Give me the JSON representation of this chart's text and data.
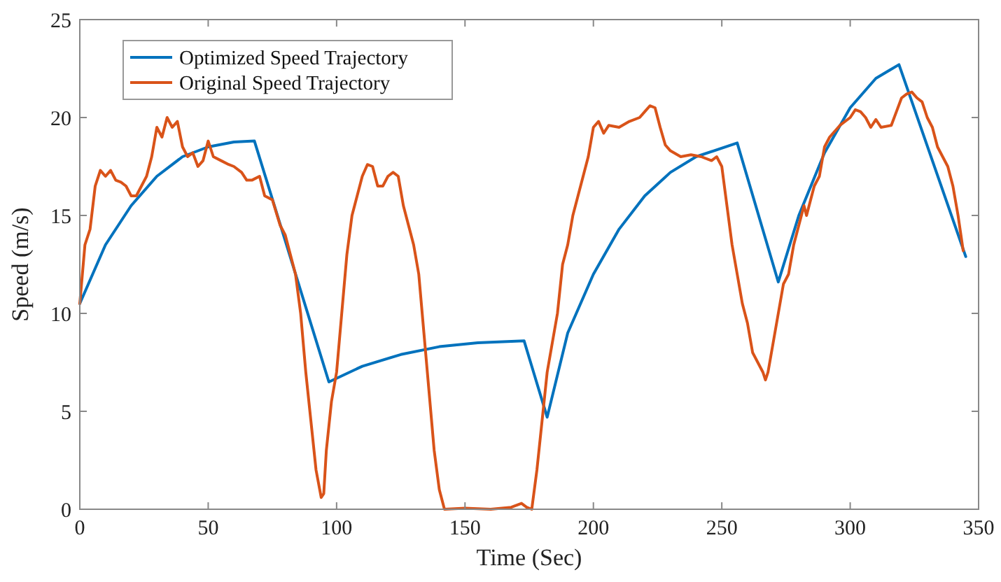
{
  "chart_data": {
    "type": "line",
    "xlabel": "Time (Sec)",
    "ylabel": "Speed (m/s)",
    "xlim": [
      0,
      350
    ],
    "ylim": [
      0,
      25
    ],
    "xticks": [
      0,
      50,
      100,
      150,
      200,
      250,
      300,
      350
    ],
    "yticks": [
      0,
      5,
      10,
      15,
      20,
      25
    ],
    "grid": false,
    "legend": "top left",
    "line_style": "solid",
    "marker": "none",
    "series": [
      {
        "name": "Optimized Speed Trajectory",
        "color": "#0072bd",
        "x": [
          0,
          10,
          20,
          30,
          40,
          50,
          60,
          68,
          97,
          110,
          125,
          140,
          155,
          173,
          182,
          190,
          200,
          210,
          220,
          230,
          240,
          256,
          272,
          280,
          290,
          300,
          310,
          319,
          345
        ],
        "values": [
          10.5,
          13.5,
          15.5,
          17,
          18,
          18.5,
          18.75,
          18.8,
          6.5,
          7.3,
          7.9,
          8.3,
          8.5,
          8.6,
          4.7,
          9,
          12,
          14.3,
          16,
          17.2,
          18,
          18.7,
          11.6,
          15,
          18.2,
          20.5,
          22,
          22.7,
          12.9
        ]
      },
      {
        "name": "Original Speed Trajectory",
        "color": "#d95319",
        "x": [
          0,
          2,
          4,
          6,
          8,
          10,
          12,
          14,
          16,
          18,
          20,
          22,
          24,
          26,
          28,
          30,
          32,
          34,
          36,
          38,
          40,
          42,
          44,
          46,
          48,
          50,
          52,
          55,
          58,
          60,
          63,
          65,
          67,
          70,
          72,
          75,
          78,
          80,
          82,
          84,
          86,
          88,
          90,
          92,
          94,
          95,
          96,
          98,
          100,
          102,
          104,
          106,
          108,
          110,
          112,
          114,
          116,
          118,
          120,
          122,
          124,
          126,
          128,
          130,
          132,
          134,
          136,
          138,
          140,
          142,
          150,
          160,
          168,
          172,
          174,
          176,
          178,
          180,
          182,
          184,
          186,
          188,
          190,
          192,
          194,
          196,
          198,
          200,
          202,
          204,
          206,
          210,
          214,
          218,
          220,
          222,
          224,
          226,
          228,
          230,
          234,
          238,
          242,
          246,
          248,
          250,
          252,
          254,
          256,
          258,
          260,
          262,
          264,
          266,
          267,
          268,
          270,
          272,
          274,
          276,
          278,
          280,
          282,
          283,
          286,
          288,
          290,
          292,
          296,
          300,
          302,
          304,
          306,
          308,
          310,
          312,
          316,
          318,
          320,
          322,
          324,
          326,
          328,
          330,
          332,
          334,
          336,
          338,
          340,
          342,
          344
        ],
        "values": [
          10.5,
          13.5,
          14.3,
          16.5,
          17.3,
          17,
          17.3,
          16.8,
          16.7,
          16.5,
          16,
          16,
          16.5,
          17,
          18,
          19.5,
          19,
          20,
          19.5,
          19.8,
          18.5,
          18,
          18.2,
          17.5,
          17.8,
          18.8,
          18,
          17.8,
          17.6,
          17.5,
          17.2,
          16.8,
          16.8,
          17,
          16,
          15.8,
          14.5,
          14,
          13,
          12,
          10,
          7,
          4.5,
          2,
          0.6,
          0.8,
          3,
          5.5,
          7,
          10,
          13,
          15,
          16,
          17,
          17.6,
          17.5,
          16.5,
          16.5,
          17,
          17.2,
          17,
          15.5,
          14.5,
          13.5,
          12,
          9,
          6,
          3,
          1,
          0,
          0.05,
          0,
          0.1,
          0.3,
          0.1,
          0,
          2,
          4.5,
          7,
          8.5,
          10,
          12.5,
          13.5,
          15,
          16,
          17,
          18,
          19.5,
          19.8,
          19.2,
          19.6,
          19.5,
          19.8,
          20,
          20.3,
          20.6,
          20.5,
          19.5,
          18.6,
          18.3,
          18,
          18.1,
          18,
          17.8,
          18,
          17.5,
          15.5,
          13.5,
          12,
          10.5,
          9.5,
          8,
          7.5,
          7,
          6.6,
          7,
          8.5,
          10,
          11.5,
          12,
          13.5,
          14.5,
          15.5,
          15,
          16.5,
          17,
          18.5,
          19,
          19.6,
          20,
          20.4,
          20.3,
          20,
          19.5,
          19.9,
          19.5,
          19.6,
          20.3,
          21,
          21.2,
          21.3,
          21,
          20.8,
          20,
          19.5,
          18.5,
          18,
          17.5,
          16.5,
          15,
          13.2
        ]
      }
    ]
  }
}
